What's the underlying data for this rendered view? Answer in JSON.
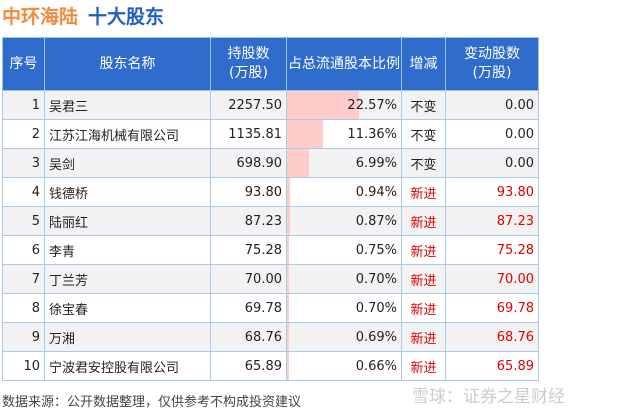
{
  "title": {
    "company": "中环海陆",
    "subtitle": "十大股东"
  },
  "chart_data": {
    "type": "table",
    "columns": [
      "序号",
      "股东名称",
      "持股数\n(万股)",
      "占总流通股本比例",
      "增减",
      "变动股数\n(万股)"
    ],
    "rows": [
      {
        "no": "1",
        "name": "吴君三",
        "shares": "2257.50",
        "ratio": "22.57%",
        "ratio_value": 22.57,
        "change": "不变",
        "delta": "0.00"
      },
      {
        "no": "2",
        "name": "江苏江海机械有限公司",
        "shares": "1135.81",
        "ratio": "11.36%",
        "ratio_value": 11.36,
        "change": "不变",
        "delta": "0.00"
      },
      {
        "no": "3",
        "name": "吴剑",
        "shares": "698.90",
        "ratio": "6.99%",
        "ratio_value": 6.99,
        "change": "不变",
        "delta": "0.00"
      },
      {
        "no": "4",
        "name": "钱德桥",
        "shares": "93.80",
        "ratio": "0.94%",
        "ratio_value": 0.94,
        "change": "新进",
        "delta": "93.80"
      },
      {
        "no": "5",
        "name": "陆丽红",
        "shares": "87.23",
        "ratio": "0.87%",
        "ratio_value": 0.87,
        "change": "新进",
        "delta": "87.23"
      },
      {
        "no": "6",
        "name": "李青",
        "shares": "75.28",
        "ratio": "0.75%",
        "ratio_value": 0.75,
        "change": "新进",
        "delta": "75.28"
      },
      {
        "no": "7",
        "name": "丁兰芳",
        "shares": "70.00",
        "ratio": "0.70%",
        "ratio_value": 0.7,
        "change": "新进",
        "delta": "70.00"
      },
      {
        "no": "8",
        "name": "徐宝春",
        "shares": "69.78",
        "ratio": "0.70%",
        "ratio_value": 0.7,
        "change": "新进",
        "delta": "69.78"
      },
      {
        "no": "9",
        "name": "万湘",
        "shares": "68.76",
        "ratio": "0.69%",
        "ratio_value": 0.69,
        "change": "新进",
        "delta": "68.76"
      },
      {
        "no": "10",
        "name": "宁波君安控股有限公司",
        "shares": "65.89",
        "ratio": "0.66%",
        "ratio_value": 0.66,
        "change": "新进",
        "delta": "65.89"
      }
    ]
  },
  "footer": "数据来源：公开数据整理，仅供参考不构成投资建议",
  "watermark": "雪球：证券之星财经",
  "colors": {
    "header": "#2f6ccb",
    "bar": "#ffcbcb",
    "new": "#e00000"
  }
}
